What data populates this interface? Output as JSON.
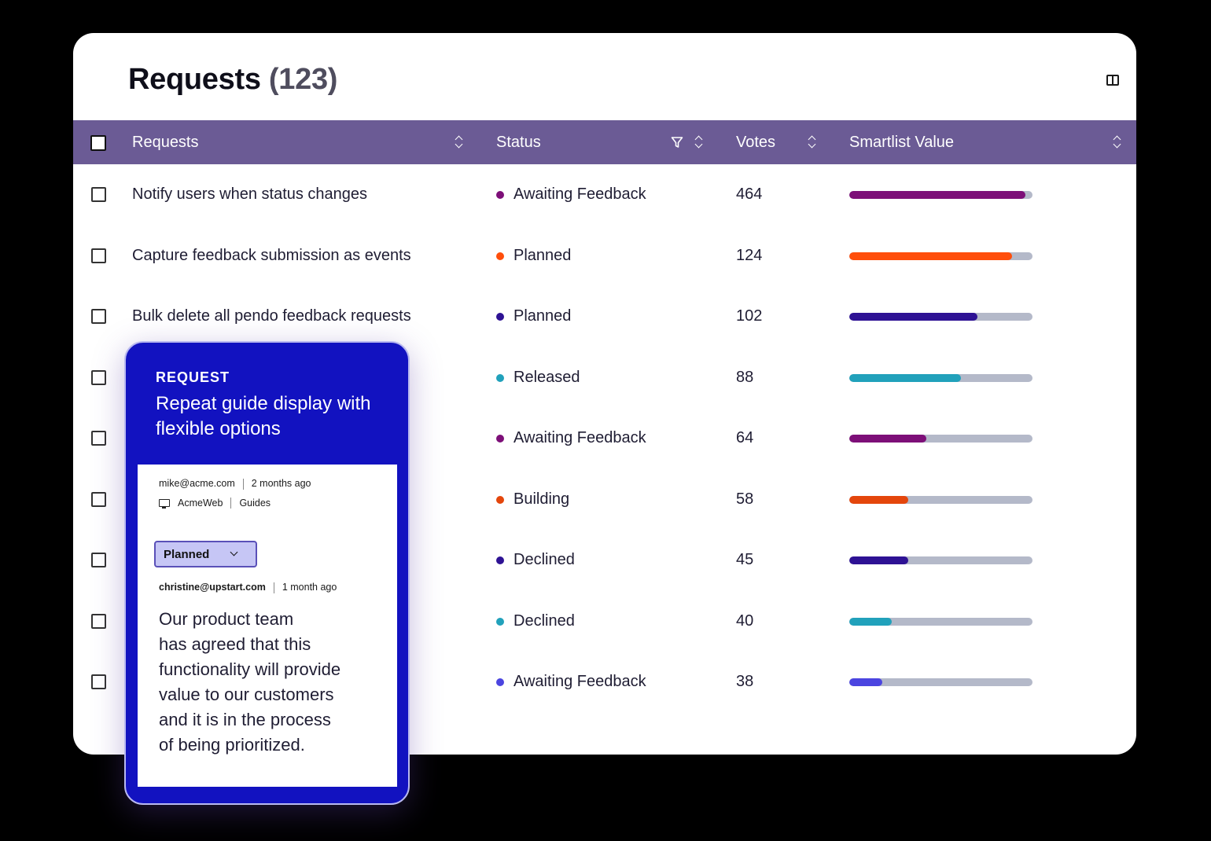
{
  "header": {
    "title": "Requests",
    "count": "(123)",
    "panel_icon": "panel-toggle-icon"
  },
  "table": {
    "columns": [
      "Requests",
      "Status",
      "Votes",
      "Smartlist Value"
    ],
    "rows": [
      {
        "request": "Notify users when status changes",
        "status": "Awaiting Feedback",
        "status_color": "#7d0f78",
        "votes": "464",
        "smartlist_value": 0.96
      },
      {
        "request": "Capture feedback submission as events",
        "status": "Planned",
        "status_color": "#ff4e0b",
        "votes": "124",
        "smartlist_value": 0.89
      },
      {
        "request": "Bulk delete all pendo feedback requests",
        "status": "Planned",
        "status_color": "#2e1294",
        "votes": "102",
        "smartlist_value": 0.7
      },
      {
        "request": "",
        "status": "Released",
        "status_color": "#21a1bb",
        "votes": "88",
        "smartlist_value": 0.61
      },
      {
        "request": "",
        "status": "Awaiting Feedback",
        "status_color": "#7d0f78",
        "votes": "64",
        "smartlist_value": 0.42
      },
      {
        "request": "",
        "status": "Building",
        "status_color": "#e4460c",
        "votes": "58",
        "smartlist_value": 0.32
      },
      {
        "request": "",
        "status": "Declined",
        "status_color": "#2e1294",
        "votes": "45",
        "smartlist_value": 0.32
      },
      {
        "request": "",
        "status": "Declined",
        "status_color": "#21a1bb",
        "votes": "40",
        "smartlist_value": 0.23
      },
      {
        "request": "",
        "status": "Awaiting Feedback",
        "status_color": "#4b45e0",
        "votes": "38",
        "smartlist_value": 0.18
      }
    ]
  },
  "card": {
    "kicker": "REQUEST",
    "title": "Repeat guide display with flexible options",
    "author": "mike@acme.com",
    "age": "2 months ago",
    "app": "AcmeWeb",
    "area": "Guides",
    "status_select": "Planned",
    "reply_author": "christine@upstart.com",
    "reply_age": "1 month ago",
    "reply_text": "Our product team\nhas agreed that this\nfunctionality will provide\nvalue to our customers\nand it is in the process\nof being prioritized."
  }
}
